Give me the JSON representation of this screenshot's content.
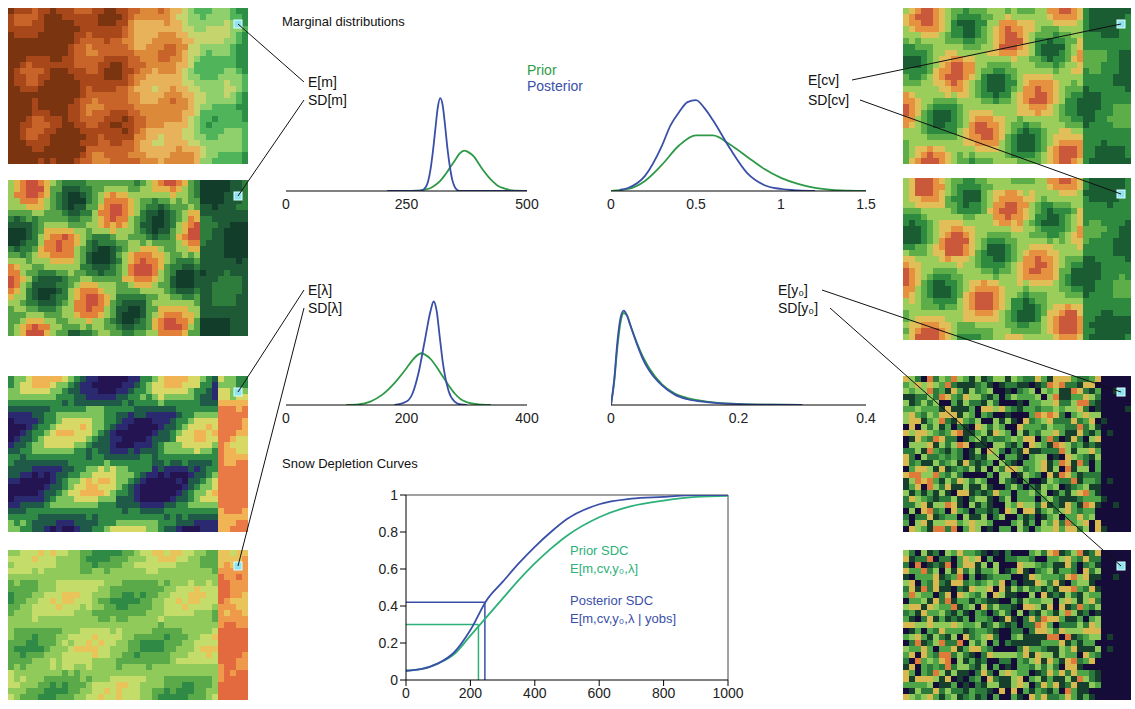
{
  "title": "Marginal distributions",
  "chart_data": [
    {
      "type": "line",
      "annotations": [
        "E[m]",
        "SD[m]"
      ],
      "xlim": [
        0,
        500
      ],
      "xticks": [
        0,
        250,
        500
      ],
      "ylim": [
        0,
        1
      ],
      "tick_labels": "x",
      "series": [
        {
          "name": "Prior",
          "color": "#2e9a48",
          "x": [
            250,
            260,
            270,
            280,
            290,
            300,
            310,
            320,
            330,
            340,
            350,
            360,
            370,
            380,
            390,
            400,
            410,
            420,
            430,
            440,
            450,
            460,
            470,
            480,
            490,
            500
          ],
          "values": [
            0,
            0.001,
            0.003,
            0.007,
            0.015,
            0.03,
            0.06,
            0.1,
            0.16,
            0.23,
            0.3,
            0.37,
            0.4,
            0.38,
            0.34,
            0.27,
            0.2,
            0.14,
            0.09,
            0.05,
            0.03,
            0.015,
            0.007,
            0.003,
            0.001,
            0
          ]
        },
        {
          "name": "Posterior",
          "color": "#3a4fa8",
          "x": [
            210,
            250,
            280,
            290,
            295,
            300,
            305,
            310,
            315,
            320,
            325,
            330,
            335,
            340,
            345,
            350,
            355,
            360,
            400,
            500
          ],
          "values": [
            0,
            0,
            0.003,
            0.04,
            0.1,
            0.22,
            0.4,
            0.62,
            0.83,
            0.92,
            0.85,
            0.65,
            0.42,
            0.24,
            0.11,
            0.04,
            0.01,
            0,
            0,
            0
          ]
        }
      ]
    },
    {
      "type": "line",
      "annotations": [
        "E[cv]",
        "SD[cv]"
      ],
      "xlim": [
        0,
        1.5
      ],
      "xticks": [
        0,
        0.5,
        1,
        1.5
      ],
      "ylim": [
        0,
        1
      ],
      "tick_labels": "x",
      "series": [
        {
          "name": "Prior",
          "color": "#2e9a48",
          "x": [
            0,
            0.1,
            0.2,
            0.3,
            0.4,
            0.5,
            0.6,
            0.7,
            0.8,
            0.9,
            1.0,
            1.1,
            1.2,
            1.3,
            1.4,
            1.5
          ],
          "values": [
            0,
            0.02,
            0.1,
            0.26,
            0.45,
            0.55,
            0.55,
            0.46,
            0.34,
            0.22,
            0.13,
            0.07,
            0.03,
            0.01,
            0.003,
            0
          ]
        },
        {
          "name": "Posterior",
          "color": "#3a4fa8",
          "x": [
            0.05,
            0.1,
            0.2,
            0.3,
            0.35,
            0.4,
            0.45,
            0.5,
            0.55,
            0.6,
            0.7,
            0.8,
            0.9,
            1.0,
            1.1,
            1.2
          ],
          "values": [
            0.01,
            0.03,
            0.15,
            0.45,
            0.65,
            0.78,
            0.88,
            0.9,
            0.82,
            0.7,
            0.42,
            0.18,
            0.06,
            0.02,
            0.005,
            0
          ]
        }
      ]
    },
    {
      "type": "line",
      "annotations": [
        "E[λ]",
        "SD[λ]"
      ],
      "xlim": [
        0,
        400
      ],
      "xticks": [
        0,
        200,
        400
      ],
      "ylim": [
        0,
        1
      ],
      "tick_labels": "x",
      "series": [
        {
          "name": "Prior",
          "color": "#2e9a48",
          "x": [
            100,
            120,
            140,
            160,
            180,
            200,
            210,
            220,
            225,
            230,
            240,
            250,
            260,
            270,
            280,
            290,
            300,
            320,
            340
          ],
          "values": [
            0,
            0.005,
            0.03,
            0.09,
            0.19,
            0.32,
            0.39,
            0.44,
            0.45,
            0.44,
            0.4,
            0.33,
            0.25,
            0.17,
            0.1,
            0.05,
            0.025,
            0.005,
            0
          ]
        },
        {
          "name": "Posterior",
          "color": "#3a4fa8",
          "x": [
            180,
            200,
            210,
            220,
            230,
            240,
            245,
            250,
            255,
            260,
            270,
            280,
            290,
            300
          ],
          "values": [
            0,
            0.03,
            0.1,
            0.28,
            0.55,
            0.82,
            0.9,
            0.82,
            0.6,
            0.38,
            0.12,
            0.03,
            0.005,
            0
          ]
        }
      ]
    },
    {
      "type": "line",
      "annotations": [
        "E[y₀]",
        "SD[y₀]"
      ],
      "xlim": [
        0,
        0.4
      ],
      "xticks": [
        0,
        0.2,
        0.4
      ],
      "ylim": [
        0,
        1
      ],
      "tick_labels": "x",
      "series": [
        {
          "name": "Prior",
          "color": "#2e9a48",
          "x": [
            0,
            0.005,
            0.01,
            0.015,
            0.02,
            0.025,
            0.03,
            0.04,
            0.05,
            0.06,
            0.08,
            0.1,
            0.12,
            0.15,
            0.2,
            0.25,
            0.3
          ],
          "values": [
            0,
            0.2,
            0.5,
            0.72,
            0.8,
            0.78,
            0.7,
            0.55,
            0.42,
            0.32,
            0.18,
            0.1,
            0.06,
            0.03,
            0.01,
            0.003,
            0
          ]
        },
        {
          "name": "Posterior",
          "color": "#3a4fa8",
          "x": [
            0,
            0.005,
            0.01,
            0.015,
            0.02,
            0.025,
            0.03,
            0.04,
            0.05,
            0.06,
            0.08,
            0.1,
            0.12,
            0.15,
            0.2,
            0.25,
            0.3
          ],
          "values": [
            0,
            0.22,
            0.55,
            0.76,
            0.82,
            0.78,
            0.7,
            0.54,
            0.4,
            0.3,
            0.17,
            0.09,
            0.05,
            0.025,
            0.008,
            0.002,
            0
          ]
        }
      ]
    },
    {
      "type": "line",
      "title": "Snow Depletion Curves",
      "xlim": [
        0,
        1000
      ],
      "xticks": [
        0,
        200,
        400,
        600,
        800,
        1000
      ],
      "ylim": [
        0,
        1
      ],
      "yticks": [
        0,
        0.2,
        0.4,
        0.6,
        0.8,
        1
      ],
      "series": [
        {
          "name": "Prior SDC",
          "expression": "E[m,cv,y₀,λ]",
          "color": "#2eb07a",
          "x": [
            0,
            50,
            100,
            150,
            200,
            250,
            300,
            350,
            400,
            450,
            500,
            600,
            700,
            800,
            900,
            1000
          ],
          "values": [
            0.05,
            0.06,
            0.09,
            0.14,
            0.24,
            0.34,
            0.44,
            0.54,
            0.63,
            0.71,
            0.78,
            0.88,
            0.94,
            0.97,
            0.99,
            0.995
          ],
          "reference": {
            "x": 225,
            "y": 0.3
          }
        },
        {
          "name": "Posterior SDC",
          "expression": "E[m,cv,y₀,λ | yobs]",
          "color": "#3a4fa8",
          "x": [
            0,
            50,
            100,
            150,
            200,
            250,
            300,
            350,
            400,
            450,
            500,
            600,
            700,
            800,
            900,
            1000
          ],
          "values": [
            0.05,
            0.06,
            0.09,
            0.15,
            0.27,
            0.43,
            0.53,
            0.63,
            0.72,
            0.8,
            0.87,
            0.95,
            0.98,
            0.99,
            1.0,
            1.0
          ],
          "reference": {
            "x": 245,
            "y": 0.42
          }
        }
      ]
    }
  ]
}
